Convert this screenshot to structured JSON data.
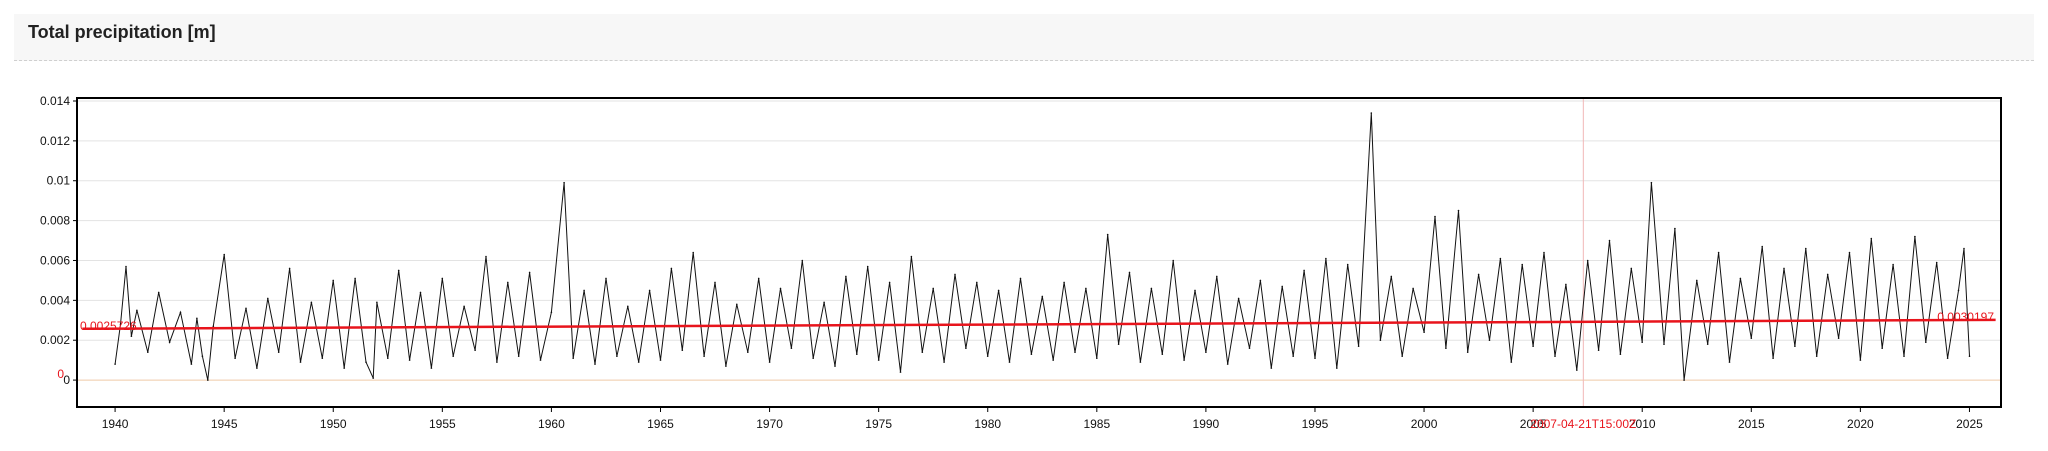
{
  "header": {
    "title": "Total precipitation [m]"
  },
  "colors": {
    "line": "#111111",
    "trend": "#e8141c",
    "marker": "#f2b7b7",
    "zero_line": "#efc9a8",
    "grid": "#e3e3e3",
    "frame": "#000000",
    "label": "#e8141c"
  },
  "chart_data": {
    "type": "line",
    "title": "Total precipitation [m]",
    "xlabel": "",
    "ylabel": "",
    "xlim": [
      1938.3,
      2026.4
    ],
    "ylim": [
      -0.0013,
      0.0141
    ],
    "grid": true,
    "x_ticks": [
      1940,
      1945,
      1950,
      1955,
      1960,
      1965,
      1970,
      1975,
      1980,
      1985,
      1990,
      1995,
      2000,
      2005,
      2010,
      2015,
      2020,
      2025
    ],
    "x_tick_labels": [
      "1940",
      "1945",
      "1950",
      "1955",
      "1960",
      "1965",
      "1970",
      "1975",
      "1980",
      "1985",
      "1990",
      "1995",
      "2000",
      "2005",
      "2010",
      "2015",
      "2020",
      "2025"
    ],
    "y_ticks": [
      0,
      0.002,
      0.004,
      0.006,
      0.008,
      0.01,
      0.012,
      0.014
    ],
    "y_tick_labels": [
      "0",
      "0.002",
      "0.004",
      "0.006",
      "0.008",
      "0.01",
      "0.012",
      "0.014"
    ],
    "series": [
      {
        "x": [
          1940.0,
          1940.25,
          1940.5,
          1940.75,
          1941.0,
          1941.5,
          1942.0,
          1942.5,
          1943.0,
          1943.5,
          1943.75,
          1944.0,
          1944.25,
          1944.5,
          1945.0,
          1945.5,
          1946.0,
          1946.5,
          1947.0,
          1947.5,
          1948.0,
          1948.5,
          1949.0,
          1949.5,
          1950.0,
          1950.5,
          1951.0,
          1951.5,
          1951.83,
          1952.0,
          1952.5,
          1953.0,
          1953.5,
          1954.0,
          1954.5,
          1955.0,
          1955.5,
          1956.0,
          1956.5,
          1957.0,
          1957.5,
          1958.0,
          1958.5,
          1959.0,
          1959.5,
          1960.0,
          1960.58,
          1961.0,
          1961.5,
          1962.0,
          1962.5,
          1963.0,
          1963.5,
          1964.0,
          1964.5,
          1965.0,
          1965.5,
          1966.0,
          1966.5,
          1967.0,
          1967.5,
          1968.0,
          1968.5,
          1969.0,
          1969.5,
          1970.0,
          1970.5,
          1971.0,
          1971.5,
          1972.0,
          1972.5,
          1973.0,
          1973.5,
          1974.0,
          1974.5,
          1975.0,
          1975.5,
          1976.0,
          1976.5,
          1977.0,
          1977.5,
          1978.0,
          1978.5,
          1979.0,
          1979.5,
          1980.0,
          1980.5,
          1981.0,
          1981.5,
          1982.0,
          1982.5,
          1983.0,
          1983.5,
          1984.0,
          1984.5,
          1985.0,
          1985.5,
          1986.0,
          1986.5,
          1987.0,
          1987.5,
          1988.0,
          1988.5,
          1989.0,
          1989.5,
          1990.0,
          1990.5,
          1991.0,
          1991.5,
          1992.0,
          1992.5,
          1993.0,
          1993.5,
          1994.0,
          1994.5,
          1995.0,
          1995.5,
          1996.0,
          1996.5,
          1997.0,
          1997.58,
          1998.0,
          1998.5,
          1999.0,
          1999.5,
          2000.0,
          2000.5,
          2001.0,
          2001.58,
          2002.0,
          2002.5,
          2003.0,
          2003.5,
          2004.0,
          2004.5,
          2005.0,
          2005.5,
          2006.0,
          2006.5,
          2007.0,
          2007.5,
          2008.0,
          2008.5,
          2009.0,
          2009.5,
          2010.0,
          2010.42,
          2011.0,
          2011.5,
          2011.92,
          2012.5,
          2013.0,
          2013.5,
          2014.0,
          2014.5,
          2015.0,
          2015.5,
          2016.0,
          2016.5,
          2017.0,
          2017.5,
          2018.0,
          2018.5,
          2019.0,
          2019.5,
          2020.0,
          2020.5,
          2021.0,
          2021.5,
          2022.0,
          2022.5,
          2023.0,
          2023.5,
          2024.0,
          2024.5,
          2024.75,
          2025.0
        ],
        "values": [
          0.0008,
          0.0028,
          0.0057,
          0.0022,
          0.0035,
          0.0014,
          0.0044,
          0.0019,
          0.0034,
          0.0008,
          0.0031,
          0.0012,
          0.0,
          0.0027,
          0.0063,
          0.0011,
          0.0036,
          0.0006,
          0.0041,
          0.0014,
          0.0056,
          0.0009,
          0.0039,
          0.0011,
          0.005,
          0.0006,
          0.0051,
          0.0009,
          0.0001,
          0.0039,
          0.0011,
          0.0055,
          0.001,
          0.0044,
          0.0006,
          0.0051,
          0.0012,
          0.0037,
          0.0015,
          0.0062,
          0.0009,
          0.0049,
          0.0012,
          0.0054,
          0.001,
          0.0034,
          0.0099,
          0.0011,
          0.0045,
          0.0008,
          0.0051,
          0.0012,
          0.0037,
          0.0009,
          0.0045,
          0.001,
          0.0056,
          0.0015,
          0.0064,
          0.0012,
          0.0049,
          0.0007,
          0.0038,
          0.0014,
          0.0051,
          0.0009,
          0.0046,
          0.0016,
          0.006,
          0.0011,
          0.0039,
          0.0007,
          0.0052,
          0.0013,
          0.0057,
          0.001,
          0.0049,
          0.0004,
          0.0062,
          0.0014,
          0.0046,
          0.0009,
          0.0053,
          0.0016,
          0.0049,
          0.0012,
          0.0045,
          0.0009,
          0.0051,
          0.0013,
          0.0042,
          0.001,
          0.0049,
          0.0014,
          0.0046,
          0.0011,
          0.0073,
          0.0018,
          0.0054,
          0.0009,
          0.0046,
          0.0013,
          0.006,
          0.001,
          0.0045,
          0.0014,
          0.0052,
          0.0008,
          0.0041,
          0.0016,
          0.005,
          0.0006,
          0.0047,
          0.0012,
          0.0055,
          0.0011,
          0.0061,
          0.0006,
          0.0058,
          0.0017,
          0.0134,
          0.002,
          0.0052,
          0.0012,
          0.0046,
          0.0024,
          0.0082,
          0.0016,
          0.0085,
          0.0014,
          0.0053,
          0.002,
          0.0061,
          0.0009,
          0.0058,
          0.0017,
          0.0064,
          0.0012,
          0.0048,
          0.0005,
          0.006,
          0.0015,
          0.007,
          0.0013,
          0.0056,
          0.0019,
          0.0099,
          0.0018,
          0.0076,
          0.0,
          0.005,
          0.0018,
          0.0064,
          0.0009,
          0.0051,
          0.0021,
          0.0067,
          0.0011,
          0.0056,
          0.0017,
          0.0066,
          0.0012,
          0.0053,
          0.0021,
          0.0064,
          0.001,
          0.0071,
          0.0016,
          0.0058,
          0.0012,
          0.0072,
          0.0019,
          0.0059,
          0.0011,
          0.0045,
          0.0066,
          0.0012
        ]
      }
    ],
    "trend": {
      "x": [
        1938.5,
        2026.2
      ],
      "y": [
        0.0025726,
        0.0030197
      ],
      "start_label": "0.0025726",
      "end_label": "0.0030197"
    },
    "zero_marker": {
      "y": 0,
      "label": "0"
    },
    "vertical_marker": {
      "x": 2007.3,
      "label": "2007-04-21T15:00Z"
    }
  }
}
